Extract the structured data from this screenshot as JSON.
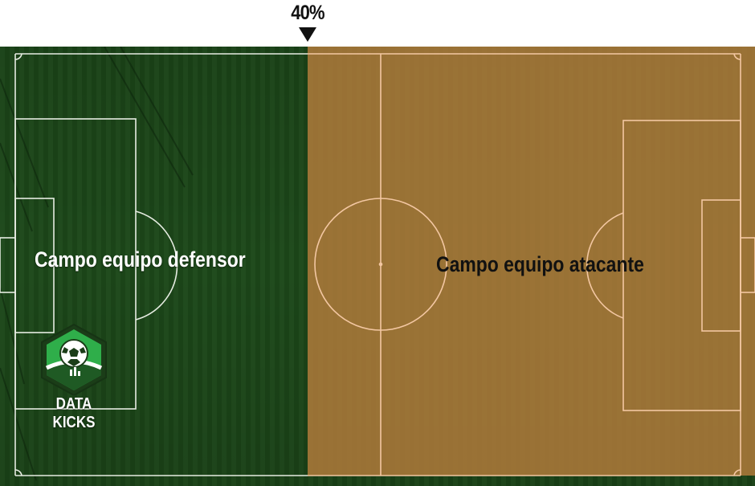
{
  "marker": {
    "label": "40%",
    "value_percent": 40
  },
  "zones": {
    "defending": {
      "label": "Campo equipo defensor",
      "color": "#1f4a1c"
    },
    "attacking": {
      "label": "Campo equipo atacante",
      "color": "#b67c3c"
    }
  },
  "colors": {
    "grass_dark": "#1c4319",
    "grass_light": "#2a5a24",
    "line_on_grass": "#e6ece2",
    "line_on_zone": "#f3c7a2"
  },
  "logo": {
    "text": "DATA KICKS",
    "icon": "soccer-ball-hexagon-icon"
  }
}
